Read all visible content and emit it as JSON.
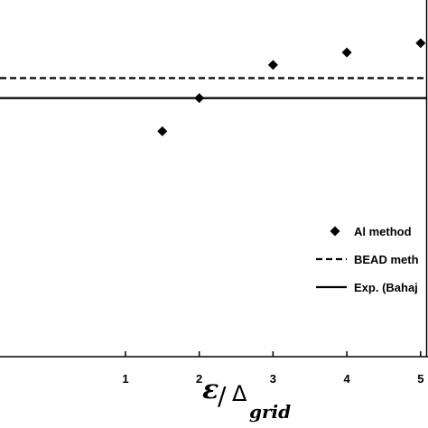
{
  "chart_data": {
    "type": "scatter",
    "title": "",
    "xlabel": {
      "symbol": "ε",
      "slash": "/",
      "delta": "Δ",
      "subscript": "grid"
    },
    "ylabel": "",
    "x_ticks": [
      "1",
      "2",
      "3",
      "4",
      "5"
    ],
    "xlim": [
      -0.7,
      5.1
    ],
    "ylim": [
      0,
      1
    ],
    "grid": false,
    "legend_position": "right",
    "series": [
      {
        "name": "Al method",
        "kind": "markers",
        "marker": "diamond",
        "x": [
          1.5,
          2.0,
          3.0,
          4.0,
          5.0
        ],
        "y": [
          0.632,
          0.725,
          0.818,
          0.853,
          0.879
        ]
      },
      {
        "name": "BEAD meth",
        "kind": "hline",
        "style": "dashed",
        "y": 0.781
      },
      {
        "name": "Exp. (Bahaj",
        "kind": "hline",
        "style": "solid",
        "y": 0.725
      }
    ]
  }
}
